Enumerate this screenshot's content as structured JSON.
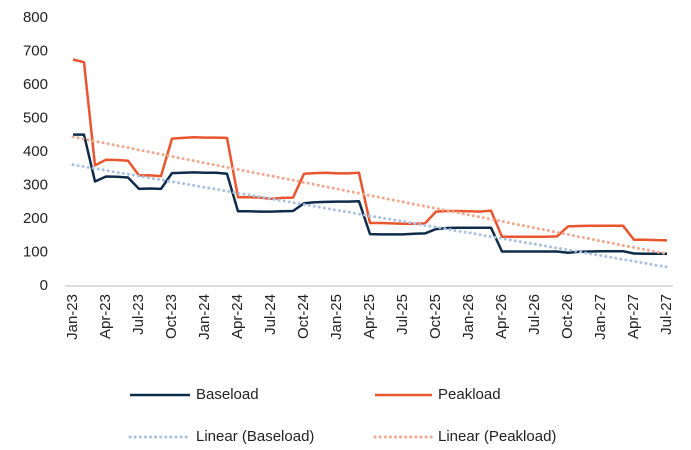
{
  "chart_data": {
    "type": "line",
    "categories": [
      "Jan-23",
      null,
      null,
      "Apr-23",
      null,
      null,
      "Jul-23",
      null,
      null,
      "Oct-23",
      null,
      null,
      "Jan-24",
      null,
      null,
      "Apr-24",
      null,
      null,
      "Jul-24",
      null,
      null,
      "Oct-24",
      null,
      null,
      "Jan-25",
      null,
      null,
      "Apr-25",
      null,
      null,
      "Jul-25",
      null,
      null,
      "Oct-25",
      null,
      null,
      "Jan-26",
      null,
      null,
      "Apr-26",
      null,
      null,
      "Jul-26",
      null,
      null,
      "Oct-26",
      null,
      null,
      "Jan-27",
      null,
      null,
      "Apr-27",
      null,
      null,
      "Jul-27"
    ],
    "series": [
      {
        "name": "Baseload",
        "color": "#0e2c4a",
        "dash": "solid",
        "values": [
          452,
          452,
          312,
          327,
          326,
          324,
          290,
          291,
          290,
          337,
          338,
          339,
          338,
          338,
          335,
          223,
          223,
          222,
          222,
          223,
          224,
          247,
          250,
          251,
          252,
          252,
          253,
          155,
          154,
          154,
          154,
          156,
          157,
          170,
          173,
          174,
          174,
          174,
          174,
          103,
          103,
          103,
          103,
          103,
          103,
          99,
          102,
          103,
          104,
          104,
          104,
          97,
          96,
          96,
          96
        ]
      },
      {
        "name": "Peakload",
        "color": "#e8552f",
        "dash": "solid",
        "values": [
          676,
          668,
          360,
          377,
          376,
          374,
          330,
          330,
          328,
          440,
          442,
          444,
          443,
          443,
          442,
          265,
          265,
          264,
          260,
          263,
          264,
          335,
          337,
          338,
          336,
          336,
          338,
          188,
          188,
          187,
          186,
          186,
          187,
          222,
          224,
          224,
          223,
          222,
          225,
          147,
          147,
          147,
          147,
          147,
          148,
          178,
          179,
          180,
          180,
          180,
          180,
          138,
          138,
          137,
          136
        ]
      },
      {
        "name": "Linear (Baseload)",
        "color": "#a9c1e0",
        "dash": "dotted",
        "values": [
          362,
          356,
          351,
          345,
          339,
          334,
          328,
          322,
          317,
          311,
          306,
          300,
          294,
          289,
          283,
          277,
          272,
          266,
          260,
          255,
          249,
          243,
          238,
          232,
          226,
          221,
          215,
          209,
          204,
          198,
          193,
          187,
          181,
          176,
          170,
          164,
          159,
          153,
          147,
          142,
          136,
          130,
          125,
          119,
          113,
          108,
          102,
          96,
          91,
          85,
          79,
          74,
          68,
          62,
          57
        ]
      },
      {
        "name": "Linear (Peakload)",
        "color": "#f0a98f",
        "dash": "dotted",
        "values": [
          445,
          439,
          432,
          426,
          419,
          413,
          406,
          400,
          393,
          387,
          380,
          374,
          367,
          361,
          354,
          348,
          341,
          335,
          329,
          322,
          316,
          309,
          303,
          296,
          290,
          283,
          277,
          270,
          264,
          257,
          251,
          244,
          238,
          232,
          225,
          219,
          212,
          206,
          199,
          193,
          186,
          180,
          173,
          167,
          160,
          154,
          147,
          141,
          134,
          128,
          121,
          115,
          109,
          102,
          96
        ]
      }
    ],
    "ylim": [
      0,
      800
    ],
    "yticks": [
      0,
      100,
      200,
      300,
      400,
      500,
      600,
      700,
      800
    ],
    "grid": false,
    "legend": "bottom"
  }
}
